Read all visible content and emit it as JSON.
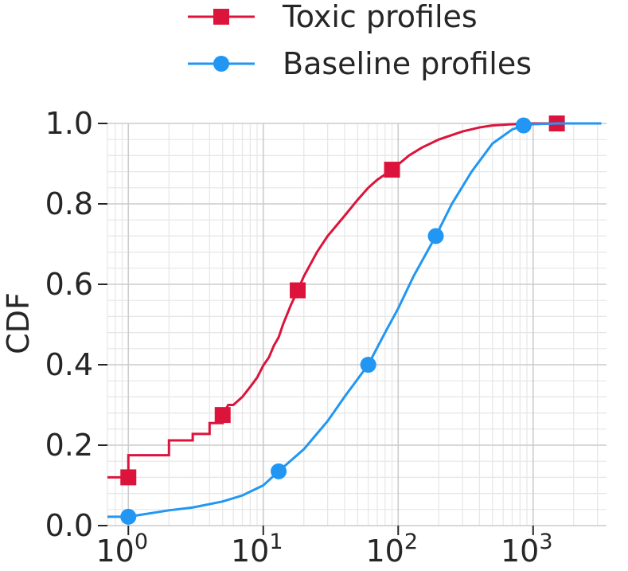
{
  "chart_data": {
    "type": "line",
    "title": "",
    "xlabel": "",
    "ylabel": "CDF",
    "xscale": "log",
    "xlim": [
      0.7,
      3500
    ],
    "ylim": [
      0,
      1
    ],
    "grid": true,
    "legend_position": "top",
    "x_ticks": [
      {
        "value": 1,
        "base": "10",
        "exp": "0"
      },
      {
        "value": 10,
        "base": "10",
        "exp": "1"
      },
      {
        "value": 100,
        "base": "10",
        "exp": "2"
      },
      {
        "value": 1000,
        "base": "10",
        "exp": "3"
      }
    ],
    "y_ticks": [
      {
        "value": 0.0,
        "label": "0.0"
      },
      {
        "value": 0.2,
        "label": "0.2"
      },
      {
        "value": 0.4,
        "label": "0.4"
      },
      {
        "value": 0.6,
        "label": "0.6"
      },
      {
        "value": 0.8,
        "label": "0.8"
      },
      {
        "value": 1.0,
        "label": "1.0"
      }
    ],
    "series": [
      {
        "name": "Toxic profiles",
        "color": "#dc143c",
        "marker": "square",
        "step": true,
        "points": [
          [
            0.7,
            0.12
          ],
          [
            1,
            0.12
          ],
          [
            1,
            0.175
          ],
          [
            2,
            0.175
          ],
          [
            2,
            0.212
          ],
          [
            3,
            0.212
          ],
          [
            3,
            0.228
          ],
          [
            4,
            0.228
          ],
          [
            4,
            0.255
          ],
          [
            5,
            0.255
          ],
          [
            5,
            0.275
          ],
          [
            5.5,
            0.3
          ],
          [
            6,
            0.3
          ],
          [
            7,
            0.32
          ],
          [
            8,
            0.345
          ],
          [
            9,
            0.368
          ],
          [
            10,
            0.398
          ],
          [
            11,
            0.418
          ],
          [
            12,
            0.448
          ],
          [
            13,
            0.468
          ],
          [
            14,
            0.5
          ],
          [
            15,
            0.525
          ],
          [
            16,
            0.548
          ],
          [
            18,
            0.585
          ],
          [
            20,
            0.62
          ],
          [
            25,
            0.68
          ],
          [
            30,
            0.72
          ],
          [
            40,
            0.77
          ],
          [
            50,
            0.81
          ],
          [
            60,
            0.84
          ],
          [
            70,
            0.86
          ],
          [
            90,
            0.885
          ],
          [
            120,
            0.92
          ],
          [
            150,
            0.94
          ],
          [
            200,
            0.96
          ],
          [
            300,
            0.98
          ],
          [
            400,
            0.99
          ],
          [
            500,
            0.995
          ],
          [
            700,
            0.998
          ],
          [
            1000,
            1.0
          ],
          [
            3200,
            1.0
          ]
        ],
        "markers": [
          [
            1,
            0.12
          ],
          [
            5,
            0.275
          ],
          [
            18,
            0.585
          ],
          [
            90,
            0.885
          ],
          [
            1500,
            1.0
          ]
        ]
      },
      {
        "name": "Baseline profiles",
        "color": "#2196f3",
        "marker": "circle",
        "step": false,
        "points": [
          [
            0.7,
            0.022
          ],
          [
            1,
            0.022
          ],
          [
            2,
            0.038
          ],
          [
            3,
            0.045
          ],
          [
            5,
            0.06
          ],
          [
            7,
            0.075
          ],
          [
            10,
            0.1
          ],
          [
            13,
            0.135
          ],
          [
            20,
            0.19
          ],
          [
            30,
            0.26
          ],
          [
            40,
            0.32
          ],
          [
            60,
            0.4
          ],
          [
            80,
            0.48
          ],
          [
            100,
            0.54
          ],
          [
            130,
            0.62
          ],
          [
            190,
            0.72
          ],
          [
            250,
            0.8
          ],
          [
            350,
            0.88
          ],
          [
            500,
            0.95
          ],
          [
            700,
            0.985
          ],
          [
            850,
            0.995
          ],
          [
            1000,
            0.998
          ],
          [
            1500,
            1.0
          ],
          [
            3200,
            1.0
          ]
        ],
        "markers": [
          [
            1,
            0.022
          ],
          [
            13,
            0.135
          ],
          [
            60,
            0.4
          ],
          [
            190,
            0.72
          ],
          [
            850,
            0.995
          ]
        ]
      }
    ]
  }
}
